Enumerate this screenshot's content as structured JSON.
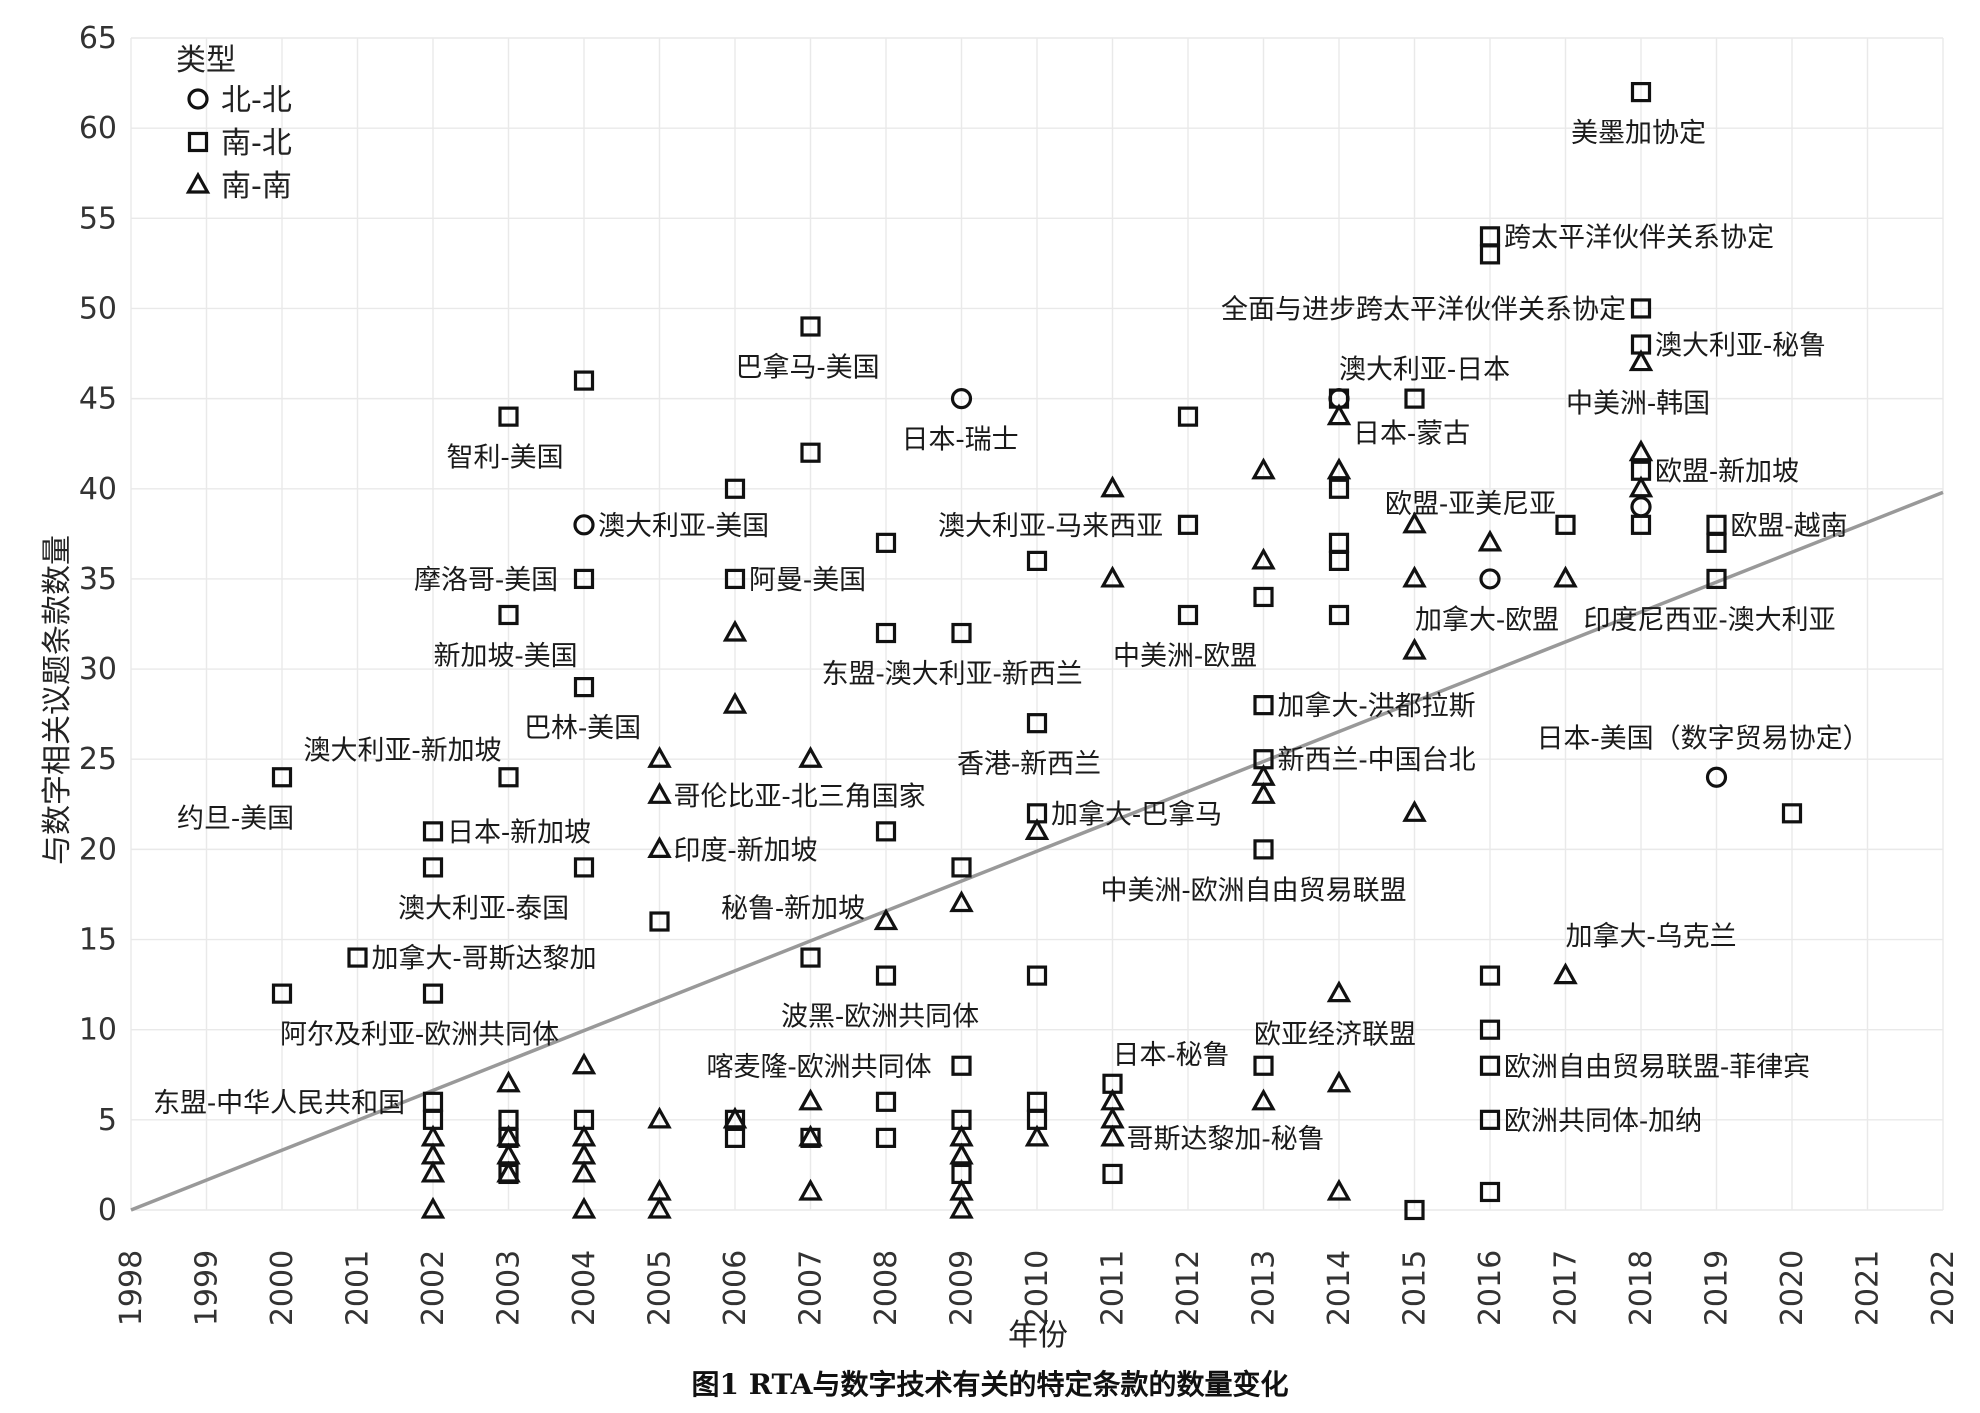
{
  "chart_data": {
    "type": "scatter",
    "xlabel": "年份",
    "ylabel": "与数字相关议题条款数量",
    "caption": "图1  RTA与数字技术有关的特定条款的数量变化",
    "legend_title": "类型",
    "legend_position": "top-left",
    "series": [
      {
        "name": "北-北",
        "marker": "circle",
        "points": [
          {
            "x": 2004,
            "y": 38
          },
          {
            "x": 2009,
            "y": 45
          },
          {
            "x": 2014,
            "y": 45
          },
          {
            "x": 2016,
            "y": 35
          },
          {
            "x": 2018,
            "y": 39
          },
          {
            "x": 2019,
            "y": 24
          }
        ]
      },
      {
        "name": "南-北",
        "marker": "square",
        "points": [
          {
            "x": 2000,
            "y": 24
          },
          {
            "x": 2000,
            "y": 12
          },
          {
            "x": 2001,
            "y": 14
          },
          {
            "x": 2002,
            "y": 21
          },
          {
            "x": 2002,
            "y": 19
          },
          {
            "x": 2002,
            "y": 12
          },
          {
            "x": 2002,
            "y": 6
          },
          {
            "x": 2002,
            "y": 5
          },
          {
            "x": 2003,
            "y": 44
          },
          {
            "x": 2003,
            "y": 33
          },
          {
            "x": 2003,
            "y": 24
          },
          {
            "x": 2003,
            "y": 5
          },
          {
            "x": 2003,
            "y": 4
          },
          {
            "x": 2003,
            "y": 2
          },
          {
            "x": 2004,
            "y": 46
          },
          {
            "x": 2004,
            "y": 35
          },
          {
            "x": 2004,
            "y": 29
          },
          {
            "x": 2004,
            "y": 19
          },
          {
            "x": 2004,
            "y": 5
          },
          {
            "x": 2005,
            "y": 16
          },
          {
            "x": 2006,
            "y": 40
          },
          {
            "x": 2006,
            "y": 35
          },
          {
            "x": 2006,
            "y": 5
          },
          {
            "x": 2006,
            "y": 4
          },
          {
            "x": 2007,
            "y": 49
          },
          {
            "x": 2007,
            "y": 42
          },
          {
            "x": 2007,
            "y": 14
          },
          {
            "x": 2007,
            "y": 4
          },
          {
            "x": 2008,
            "y": 37
          },
          {
            "x": 2008,
            "y": 32
          },
          {
            "x": 2008,
            "y": 21
          },
          {
            "x": 2008,
            "y": 13
          },
          {
            "x": 2008,
            "y": 6
          },
          {
            "x": 2008,
            "y": 4
          },
          {
            "x": 2009,
            "y": 32
          },
          {
            "x": 2009,
            "y": 19
          },
          {
            "x": 2009,
            "y": 8
          },
          {
            "x": 2009,
            "y": 5
          },
          {
            "x": 2009,
            "y": 2
          },
          {
            "x": 2010,
            "y": 36
          },
          {
            "x": 2010,
            "y": 27
          },
          {
            "x": 2010,
            "y": 22
          },
          {
            "x": 2010,
            "y": 13
          },
          {
            "x": 2010,
            "y": 6
          },
          {
            "x": 2010,
            "y": 5
          },
          {
            "x": 2011,
            "y": 7
          },
          {
            "x": 2011,
            "y": 2
          },
          {
            "x": 2012,
            "y": 44
          },
          {
            "x": 2012,
            "y": 38
          },
          {
            "x": 2012,
            "y": 33
          },
          {
            "x": 2013,
            "y": 34
          },
          {
            "x": 2013,
            "y": 28
          },
          {
            "x": 2013,
            "y": 25
          },
          {
            "x": 2013,
            "y": 20
          },
          {
            "x": 2013,
            "y": 8
          },
          {
            "x": 2014,
            "y": 45
          },
          {
            "x": 2014,
            "y": 40
          },
          {
            "x": 2014,
            "y": 37
          },
          {
            "x": 2014,
            "y": 36
          },
          {
            "x": 2014,
            "y": 33
          },
          {
            "x": 2015,
            "y": 45
          },
          {
            "x": 2015,
            "y": 0
          },
          {
            "x": 2016,
            "y": 54
          },
          {
            "x": 2016,
            "y": 53
          },
          {
            "x": 2016,
            "y": 13
          },
          {
            "x": 2016,
            "y": 10
          },
          {
            "x": 2016,
            "y": 8
          },
          {
            "x": 2016,
            "y": 5
          },
          {
            "x": 2016,
            "y": 1
          },
          {
            "x": 2017,
            "y": 38
          },
          {
            "x": 2018,
            "y": 62
          },
          {
            "x": 2018,
            "y": 50
          },
          {
            "x": 2018,
            "y": 48
          },
          {
            "x": 2018,
            "y": 41
          },
          {
            "x": 2018,
            "y": 38
          },
          {
            "x": 2019,
            "y": 38
          },
          {
            "x": 2019,
            "y": 37
          },
          {
            "x": 2019,
            "y": 35
          },
          {
            "x": 2020,
            "y": 22
          }
        ]
      },
      {
        "name": "南-南",
        "marker": "triangle",
        "points": [
          {
            "x": 2002,
            "y": 4
          },
          {
            "x": 2002,
            "y": 3
          },
          {
            "x": 2002,
            "y": 2
          },
          {
            "x": 2002,
            "y": 0
          },
          {
            "x": 2003,
            "y": 7
          },
          {
            "x": 2003,
            "y": 4
          },
          {
            "x": 2003,
            "y": 3
          },
          {
            "x": 2003,
            "y": 2
          },
          {
            "x": 2004,
            "y": 8
          },
          {
            "x": 2004,
            "y": 4
          },
          {
            "x": 2004,
            "y": 3
          },
          {
            "x": 2004,
            "y": 2
          },
          {
            "x": 2004,
            "y": 0
          },
          {
            "x": 2005,
            "y": 25
          },
          {
            "x": 2005,
            "y": 23
          },
          {
            "x": 2005,
            "y": 20
          },
          {
            "x": 2005,
            "y": 5
          },
          {
            "x": 2005,
            "y": 1
          },
          {
            "x": 2005,
            "y": 0
          },
          {
            "x": 2006,
            "y": 32
          },
          {
            "x": 2006,
            "y": 28
          },
          {
            "x": 2006,
            "y": 5
          },
          {
            "x": 2007,
            "y": 25
          },
          {
            "x": 2007,
            "y": 6
          },
          {
            "x": 2007,
            "y": 4
          },
          {
            "x": 2007,
            "y": 1
          },
          {
            "x": 2008,
            "y": 16
          },
          {
            "x": 2009,
            "y": 17
          },
          {
            "x": 2009,
            "y": 4
          },
          {
            "x": 2009,
            "y": 3
          },
          {
            "x": 2009,
            "y": 1
          },
          {
            "x": 2009,
            "y": 0
          },
          {
            "x": 2010,
            "y": 21
          },
          {
            "x": 2010,
            "y": 4
          },
          {
            "x": 2011,
            "y": 40
          },
          {
            "x": 2011,
            "y": 35
          },
          {
            "x": 2011,
            "y": 6
          },
          {
            "x": 2011,
            "y": 5
          },
          {
            "x": 2011,
            "y": 4
          },
          {
            "x": 2013,
            "y": 41
          },
          {
            "x": 2013,
            "y": 36
          },
          {
            "x": 2013,
            "y": 24
          },
          {
            "x": 2013,
            "y": 23
          },
          {
            "x": 2013,
            "y": 6
          },
          {
            "x": 2014,
            "y": 44
          },
          {
            "x": 2014,
            "y": 41
          },
          {
            "x": 2014,
            "y": 12
          },
          {
            "x": 2014,
            "y": 7
          },
          {
            "x": 2014,
            "y": 1
          },
          {
            "x": 2015,
            "y": 38
          },
          {
            "x": 2015,
            "y": 35
          },
          {
            "x": 2015,
            "y": 31
          },
          {
            "x": 2015,
            "y": 22
          },
          {
            "x": 2016,
            "y": 37
          },
          {
            "x": 2017,
            "y": 35
          },
          {
            "x": 2017,
            "y": 13
          },
          {
            "x": 2018,
            "y": 47
          },
          {
            "x": 2018,
            "y": 42
          },
          {
            "x": 2018,
            "y": 40
          }
        ]
      }
    ],
    "trend_line": {
      "x": [
        1998,
        2022
      ],
      "y": [
        0,
        39.8
      ]
    },
    "annotations": [
      {
        "text": "约旦-美国",
        "x": 2000,
        "y": 24
      },
      {
        "text": "澳大利亚-新加坡",
        "x": 2003,
        "y": 24
      },
      {
        "text": "加拿大-哥斯达黎加",
        "x": 2001,
        "y": 14
      },
      {
        "text": "阿尔及利亚-欧洲共同体",
        "x": 2002,
        "y": 12
      },
      {
        "text": "东盟-中华人民共和国",
        "x": 2002,
        "y": 6
      },
      {
        "text": "日本-新加坡",
        "x": 2002,
        "y": 21
      },
      {
        "text": "澳大利亚-泰国",
        "x": 2002,
        "y": 19
      },
      {
        "text": "智利-美国",
        "x": 2003,
        "y": 44
      },
      {
        "text": "摩洛哥-美国",
        "x": 2004,
        "y": 35
      },
      {
        "text": "新加坡-美国",
        "x": 2003,
        "y": 33
      },
      {
        "text": "巴林-美国",
        "x": 2004,
        "y": 29
      },
      {
        "text": "澳大利亚-美国",
        "x": 2004,
        "y": 38
      },
      {
        "text": "哥伦比亚-北三角国家",
        "x": 2005,
        "y": 23
      },
      {
        "text": "印度-新加坡",
        "x": 2005,
        "y": 20
      },
      {
        "text": "巴拿马-美国",
        "x": 2007,
        "y": 49
      },
      {
        "text": "阿曼-美国",
        "x": 2006,
        "y": 35
      },
      {
        "text": "秘鲁-新加坡",
        "x": 2008,
        "y": 16
      },
      {
        "text": "波黑-欧洲共同体",
        "x": 2008,
        "y": 13
      },
      {
        "text": "喀麦隆-欧洲共同体",
        "x": 2009,
        "y": 8
      },
      {
        "text": "日本-瑞士",
        "x": 2009,
        "y": 45
      },
      {
        "text": "东盟-澳大利亚-新西兰",
        "x": 2009,
        "y": 32
      },
      {
        "text": "澳大利亚-马来西亚",
        "x": 2012,
        "y": 38
      },
      {
        "text": "香港-新西兰",
        "x": 2010,
        "y": 27
      },
      {
        "text": "加拿大-巴拿马",
        "x": 2010,
        "y": 22
      },
      {
        "text": "日本-秘鲁",
        "x": 2011,
        "y": 7
      },
      {
        "text": "哥斯达黎加-秘鲁",
        "x": 2011,
        "y": 4
      },
      {
        "text": "中美洲-欧盟",
        "x": 2012,
        "y": 33
      },
      {
        "text": "加拿大-洪都拉斯",
        "x": 2013,
        "y": 28
      },
      {
        "text": "新西兰-中国台北",
        "x": 2013,
        "y": 25
      },
      {
        "text": "中美洲-欧洲自由贸易联盟",
        "x": 2013,
        "y": 20
      },
      {
        "text": "欧亚经济联盟",
        "x": 2014,
        "y": 12
      },
      {
        "text": "澳大利亚-日本",
        "x": 2014,
        "y": 45
      },
      {
        "text": "日本-蒙古",
        "x": 2014,
        "y": 44
      },
      {
        "text": "全面与进步跨太平洋伙伴关系协定",
        "x": 2018,
        "y": 50
      },
      {
        "text": "欧盟-亚美尼亚",
        "x": 2016,
        "y": 37
      },
      {
        "text": "加拿大-欧盟",
        "x": 2016,
        "y": 35
      },
      {
        "text": "跨太平洋伙伴关系协定",
        "x": 2016,
        "y": 54
      },
      {
        "text": "加拿大-乌克兰",
        "x": 2017,
        "y": 13
      },
      {
        "text": "欧洲自由贸易联盟-菲律宾",
        "x": 2016,
        "y": 8
      },
      {
        "text": "欧洲共同体-加纳",
        "x": 2016,
        "y": 5
      },
      {
        "text": "美墨加协定",
        "x": 2018,
        "y": 62
      },
      {
        "text": "澳大利亚-秘鲁",
        "x": 2018,
        "y": 48
      },
      {
        "text": "中美洲-韩国",
        "x": 2018,
        "y": 47
      },
      {
        "text": "欧盟-新加坡",
        "x": 2018,
        "y": 41
      },
      {
        "text": "欧盟-越南",
        "x": 2019,
        "y": 38
      },
      {
        "text": "印度尼西亚-澳大利亚",
        "x": 2019,
        "y": 35
      },
      {
        "text": "日本-美国（数字贸易协定）",
        "x": 2019,
        "y": 24
      }
    ],
    "xlim": [
      1998,
      2022
    ],
    "ylim": [
      0,
      65
    ],
    "x_ticks": [
      "1998",
      "1999",
      "2000",
      "2001",
      "2002",
      "2003",
      "2004",
      "2005",
      "2006",
      "2007",
      "2008",
      "2009",
      "2010",
      "2011",
      "2012",
      "2013",
      "2014",
      "2015",
      "2016",
      "2017",
      "2018",
      "2019",
      "2020",
      "2021",
      "2022"
    ],
    "y_ticks": [
      "0",
      "5",
      "10",
      "15",
      "20",
      "25",
      "30",
      "35",
      "40",
      "45",
      "50",
      "55",
      "60",
      "65"
    ],
    "grid": true
  }
}
